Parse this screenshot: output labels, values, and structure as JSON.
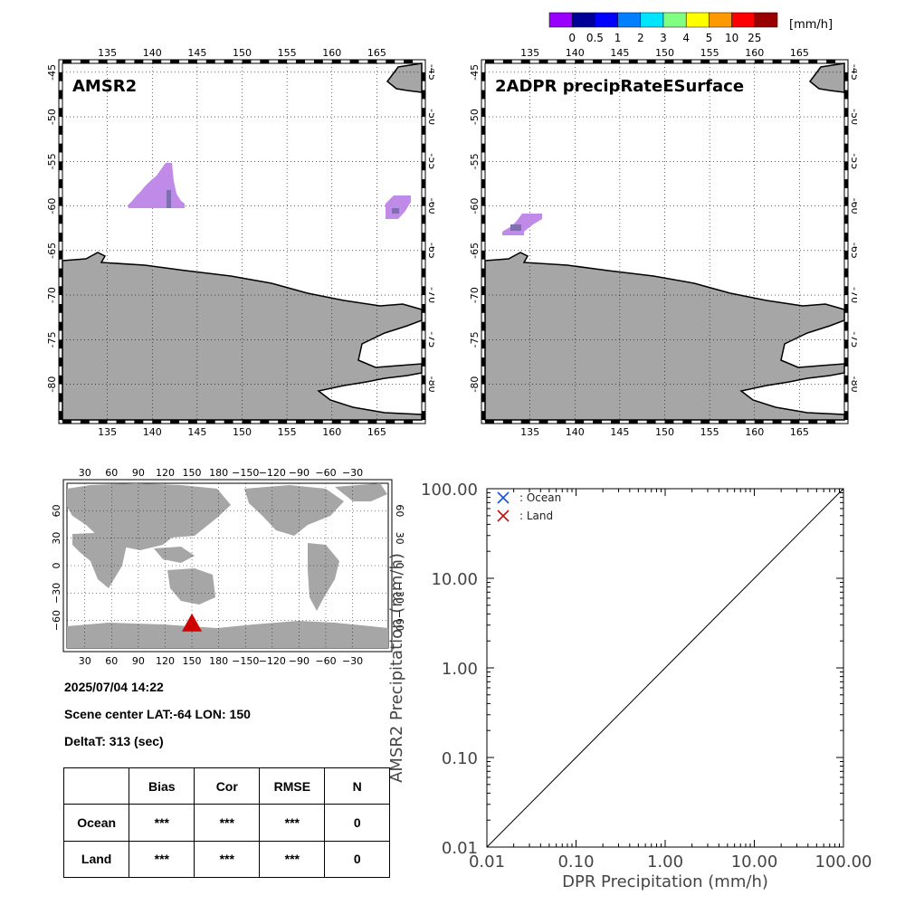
{
  "colorbar": {
    "unit": "[mm/h]",
    "ticks": [
      "0",
      "0.5",
      "1",
      "2",
      "3",
      "4",
      "5",
      "10",
      "25"
    ],
    "colors": [
      "#9900ff",
      "#000099",
      "#0000ff",
      "#0080ff",
      "#00e5ff",
      "#80ff80",
      "#ffff00",
      "#ff9900",
      "#ff0000",
      "#990000"
    ]
  },
  "map_amsr2": {
    "title": "AMSR2",
    "lon_ticks": [
      "135",
      "140",
      "145",
      "150",
      "155",
      "160",
      "165"
    ],
    "lat_ticks": [
      "-45",
      "-50",
      "-55",
      "-60",
      "-65",
      "-70",
      "-75",
      "-80"
    ],
    "precip_color": "#c08ae8"
  },
  "map_dpr": {
    "title": "2ADPR precipRateESurface",
    "lon_ticks": [
      "135",
      "140",
      "145",
      "150",
      "155",
      "160",
      "165"
    ],
    "lat_ticks": [
      "-45",
      "-50",
      "-55",
      "-60",
      "-65",
      "-70",
      "-75",
      "-80"
    ],
    "precip_color": "#c08ae8"
  },
  "world_map": {
    "lon_ticks": [
      "30",
      "60",
      "90",
      "120",
      "150",
      "180",
      "−150",
      "−120",
      "−90",
      "−60",
      "−30"
    ],
    "lat_ticks": [
      "60",
      "30",
      "0",
      "−30",
      "−60"
    ],
    "marker": {
      "lat": -64,
      "lon": 150,
      "color": "#cc0000"
    }
  },
  "info": {
    "datetime": "2025/07/04 14:22",
    "scene_center": "Scene center LAT:-64   LON: 150",
    "delta_t": "DeltaT:  313 (sec)"
  },
  "stats_table": {
    "headers": [
      "",
      "Bias",
      "Cor",
      "RMSE",
      "N"
    ],
    "rows": [
      {
        "label": "Ocean",
        "bias": "***",
        "cor": "***",
        "rmse": "***",
        "n": "0"
      },
      {
        "label": "Land",
        "bias": "***",
        "cor": "***",
        "rmse": "***",
        "n": "0"
      }
    ]
  },
  "chart_data": {
    "type": "scatter",
    "xlabel": "DPR Precipitation (mm/h)",
    "ylabel": "AMSR2 Precipitation (mm/h)",
    "x_scale": "log",
    "y_scale": "log",
    "xlim": [
      0.01,
      100
    ],
    "ylim": [
      0.01,
      100
    ],
    "x_ticks": [
      "0.01",
      "0.10",
      "1.00",
      "10.00",
      "100.00"
    ],
    "y_ticks": [
      "0.01",
      "0.10",
      "1.00",
      "10.00",
      "100.00"
    ],
    "series": [
      {
        "name": ": Ocean",
        "marker": "x",
        "color": "#1a53d6",
        "points": []
      },
      {
        "name": ": Land",
        "marker": "x",
        "color": "#c01010",
        "points": []
      }
    ],
    "reference_line": "1:1",
    "legend_position": "top-left"
  }
}
